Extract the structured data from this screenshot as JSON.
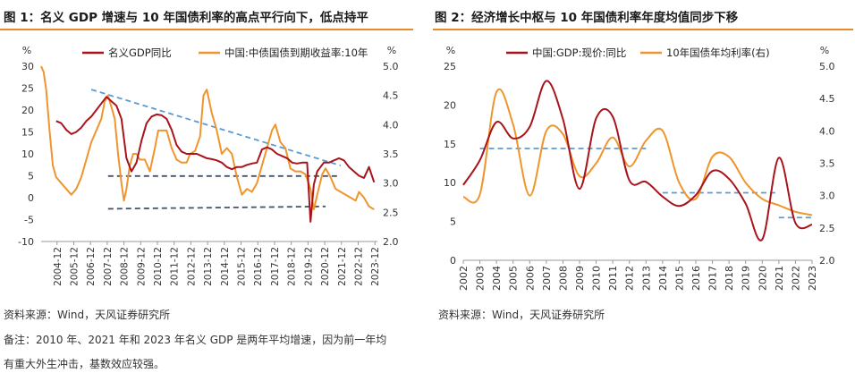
{
  "figures": {
    "left_title": "图 1：名义 GDP 增速与 10 年国债利率的高点平行向下，低点持平",
    "right_title": "图 2：经济增长中枢与 10 年国债利率年度均值同步下移",
    "left_source": "资料来源：Wind，天风证券研究所",
    "left_note_line1": "备注：2010 年、2021 年和 2023 年名义 GDP 是两年平均增速，因为前一年均",
    "left_note_line2": "有重大外生冲击，基数效应较强。",
    "right_source": "资料来源：Wind，天风证券研究所"
  },
  "colors": {
    "gdp": "#a8141c",
    "yield": "#f0952e",
    "trend_blue": "#5b9bd5",
    "trend_grey": "#44546a",
    "title_rule": "#e8892a"
  },
  "chart_data": [
    {
      "type": "line",
      "title": "图 1：名义 GDP 增速与 10 年国债利率的高点平行向下，低点持平",
      "ylabel": "%",
      "ylabel_right": "%",
      "ylim": [
        -10,
        30
      ],
      "ylim_right": [
        2.0,
        5.0
      ],
      "yticks": [
        "30",
        "25",
        "20",
        "15",
        "10",
        "5",
        "0",
        "-5",
        "-10"
      ],
      "yticks_right": [
        "5.0",
        "4.5",
        "4.0",
        "3.5",
        "3.0",
        "2.5",
        "2.0"
      ],
      "xticks": [
        "2004-12",
        "2005-12",
        "2006-12",
        "2007-12",
        "2008-12",
        "2009-12",
        "2010-12",
        "2011-12",
        "2012-12",
        "2013-12",
        "2014-12",
        "2015-12",
        "2016-12",
        "2017-12",
        "2018-12",
        "2019-12",
        "2020-12",
        "2021-12",
        "2022-12",
        "2023-12"
      ],
      "legend_position": "top",
      "grid": false,
      "series": [
        {
          "name": "名义GDP同比",
          "axis": "left",
          "x": [
            2004.9,
            2005.2,
            2005.5,
            2005.8,
            2006.1,
            2006.4,
            2006.7,
            2007.0,
            2007.3,
            2007.6,
            2007.9,
            2008.2,
            2008.5,
            2008.8,
            2009.1,
            2009.4,
            2009.7,
            2010.0,
            2010.3,
            2010.6,
            2010.9,
            2011.2,
            2011.5,
            2011.8,
            2012.1,
            2012.4,
            2012.7,
            2013.0,
            2013.3,
            2013.6,
            2013.9,
            2014.2,
            2014.5,
            2014.8,
            2015.1,
            2015.4,
            2015.7,
            2016.0,
            2016.3,
            2016.6,
            2016.9,
            2017.2,
            2017.5,
            2017.8,
            2018.1,
            2018.4,
            2018.7,
            2019.0,
            2019.3,
            2019.6,
            2019.9,
            2020.1,
            2020.3,
            2020.5,
            2020.7,
            2020.9,
            2021.2,
            2021.5,
            2021.8,
            2022.1,
            2022.4,
            2022.7,
            2023.0,
            2023.3,
            2023.6,
            2023.9
          ],
          "y": [
            17.5,
            17,
            15.5,
            14.5,
            15,
            16,
            17.5,
            18.5,
            20,
            21.5,
            23,
            22,
            21,
            18,
            9,
            6,
            8,
            13,
            17,
            18.5,
            19,
            18.8,
            18,
            15.5,
            12,
            10.5,
            10,
            10,
            10,
            9.5,
            9,
            8.8,
            8.5,
            8,
            7,
            6.5,
            7,
            7,
            7.5,
            7.8,
            8,
            11,
            11.5,
            11,
            10,
            9.5,
            9,
            8,
            7.8,
            8,
            8,
            -5.5,
            3,
            6,
            7,
            8,
            8,
            8.5,
            9,
            8.5,
            7,
            6,
            5,
            4.5,
            7,
            3.5
          ]
        },
        {
          "name": "中国:中债国债到期收益率:10年",
          "axis": "right",
          "x": [
            2004.0,
            2004.15,
            2004.3,
            2004.5,
            2004.7,
            2004.9,
            2005.2,
            2005.5,
            2005.8,
            2006.1,
            2006.4,
            2006.7,
            2007.0,
            2007.3,
            2007.6,
            2007.8,
            2008.0,
            2008.2,
            2008.4,
            2008.6,
            2008.8,
            2008.95,
            2009.1,
            2009.3,
            2009.5,
            2009.7,
            2009.9,
            2010.2,
            2010.5,
            2010.8,
            2011.0,
            2011.2,
            2011.5,
            2011.8,
            2012.1,
            2012.4,
            2012.7,
            2012.9,
            2013.2,
            2013.5,
            2013.7,
            2013.9,
            2014.2,
            2014.5,
            2014.8,
            2015.1,
            2015.4,
            2015.7,
            2016.0,
            2016.3,
            2016.6,
            2016.9,
            2017.2,
            2017.5,
            2017.8,
            2018.0,
            2018.3,
            2018.6,
            2018.9,
            2019.2,
            2019.5,
            2019.8,
            2020.1,
            2020.3,
            2020.5,
            2020.8,
            2021.0,
            2021.3,
            2021.6,
            2021.9,
            2022.2,
            2022.5,
            2022.8,
            2023.0,
            2023.3,
            2023.6,
            2023.9
          ],
          "y": [
            5.0,
            4.9,
            4.6,
            3.9,
            3.3,
            3.1,
            3.0,
            2.9,
            2.8,
            2.9,
            3.1,
            3.4,
            3.7,
            3.9,
            4.1,
            4.4,
            4.5,
            4.3,
            4.1,
            3.5,
            3.0,
            2.7,
            2.9,
            3.3,
            3.5,
            3.5,
            3.4,
            3.4,
            3.2,
            3.6,
            3.9,
            3.9,
            3.9,
            3.6,
            3.4,
            3.35,
            3.35,
            3.5,
            3.55,
            3.8,
            4.5,
            4.6,
            4.2,
            3.9,
            3.5,
            3.6,
            3.5,
            3.1,
            2.8,
            2.9,
            2.85,
            3.0,
            3.3,
            3.6,
            3.9,
            4.0,
            3.7,
            3.6,
            3.25,
            3.2,
            3.2,
            3.15,
            2.9,
            2.55,
            2.8,
            3.15,
            3.25,
            3.1,
            2.9,
            2.85,
            2.8,
            2.75,
            2.7,
            2.85,
            2.75,
            2.6,
            2.55
          ]
        }
      ],
      "trend_lines": [
        {
          "color": "blue",
          "x": [
            2007.0,
            2021.9
          ],
          "y": [
            4.6,
            3.3
          ],
          "axis": "right"
        },
        {
          "color": "grey",
          "x": [
            2008.0,
            2021.9
          ],
          "y": [
            3.12,
            3.12
          ],
          "axis": "right"
        },
        {
          "color": "grey",
          "x": [
            2008.0,
            2021.0
          ],
          "y": [
            2.56,
            2.6
          ],
          "axis": "right"
        }
      ]
    },
    {
      "type": "line",
      "title": "图 2：经济增长中枢与 10 年国债利率年度均值同步下移",
      "ylabel": "%",
      "ylabel_right": "%",
      "ylim": [
        0,
        25
      ],
      "ylim_right": [
        2.0,
        5.0
      ],
      "yticks": [
        "25",
        "20",
        "15",
        "10",
        "5",
        "0"
      ],
      "yticks_right": [
        "5.0",
        "4.5",
        "4.0",
        "3.5",
        "3.0",
        "2.5",
        "2.0"
      ],
      "categories": [
        "2002",
        "2003",
        "2004",
        "2005",
        "2006",
        "2007",
        "2008",
        "2009",
        "2010",
        "2011",
        "2012",
        "2013",
        "2014",
        "2015",
        "2016",
        "2017",
        "2018",
        "2019",
        "2020",
        "2021",
        "2022",
        "2023"
      ],
      "legend_position": "top",
      "grid": false,
      "series": [
        {
          "name": "中国:GDP:现价:同比",
          "axis": "left",
          "values": [
            9.7,
            12.9,
            17.8,
            15.7,
            17.2,
            23.1,
            18.2,
            9.2,
            18.3,
            18.5,
            10.3,
            10.1,
            8.2,
            7.0,
            8.4,
            11.5,
            10.5,
            7.3,
            2.7,
            13.2,
            4.8,
            4.6
          ]
        },
        {
          "name": "10年国债年均利率(右)",
          "axis": "right",
          "values": [
            2.98,
            3.02,
            4.6,
            4.1,
            3.0,
            4.0,
            3.95,
            3.3,
            3.5,
            3.9,
            3.45,
            3.85,
            4.0,
            3.2,
            2.95,
            3.6,
            3.6,
            3.2,
            2.95,
            2.85,
            2.75,
            2.7
          ]
        }
      ],
      "trend_lines": [
        {
          "color": "blue",
          "x": [
            "2003",
            "2013"
          ],
          "y": [
            14.4,
            14.4
          ],
          "axis": "left"
        },
        {
          "color": "blue",
          "x": [
            "2014",
            "2021"
          ],
          "y": [
            8.7,
            8.7
          ],
          "axis": "left"
        },
        {
          "color": "blue",
          "x": [
            "2021",
            "2023"
          ],
          "y": [
            5.5,
            5.5
          ],
          "axis": "left"
        }
      ]
    }
  ]
}
